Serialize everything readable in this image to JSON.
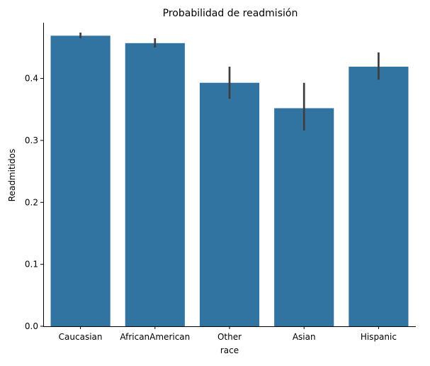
{
  "chart_data": {
    "type": "bar",
    "title": "Probabilidad de readmisión",
    "xlabel": "race",
    "ylabel": "Readmitidos",
    "categories": [
      "Caucasian",
      "AfricanAmerican",
      "Other",
      "Asian",
      "Hispanic"
    ],
    "values": [
      0.469,
      0.457,
      0.393,
      0.352,
      0.419
    ],
    "error_bars": [
      [
        0.465,
        0.474
      ],
      [
        0.45,
        0.465
      ],
      [
        0.367,
        0.419
      ],
      [
        0.316,
        0.393
      ],
      [
        0.398,
        0.442
      ]
    ],
    "ylim": [
      0,
      0.49
    ],
    "yticks": [
      0.0,
      0.1,
      0.2,
      0.3,
      0.4
    ],
    "ytick_labels": [
      "0.0",
      "0.1",
      "0.2",
      "0.3",
      "0.4"
    ],
    "grid": false,
    "bar_color": "#3274a1",
    "error_color": "#3d3d3d",
    "spines": "left-bottom"
  }
}
